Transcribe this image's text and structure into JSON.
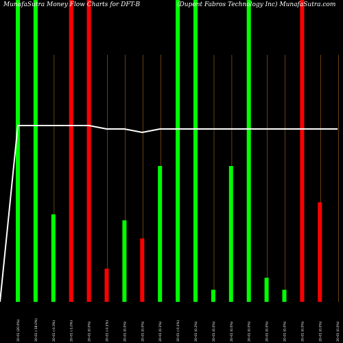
{
  "chart_data": {
    "type": "bar",
    "title_left": "MunafaSutra  Money Flow  Charts for DFT-B",
    "title_right": "(Dupont Fabros Technology Inc) MunafaSutra.com",
    "categories": [
      "20-01 (20.0%)",
      "20-01 (-18.0%)",
      "20-01 (-0.3%)",
      "20-01 (-1.0%)",
      "20-01 (0.0%)",
      "20-01 (-0.1%)",
      "20-01 (0.0%)",
      "20-01 (0.0%)",
      "20-01 (0.1%)",
      "20-01 (-0.1%)",
      "20-01 (0.2%)",
      "20-01 (0.0%)",
      "20-01 (0.0%)",
      "20-01 (0.0%)",
      "20-01 (0.0%)",
      "20-01 (0.0%)",
      "20-01 (0.0%)",
      "20-01 (0.0%)",
      "20-01 (0.0%)"
    ],
    "series": [
      {
        "values": [
          100,
          100,
          29,
          100,
          100,
          11,
          27,
          21,
          45,
          100,
          100,
          4,
          45,
          100,
          8,
          4,
          100,
          33,
          0
        ]
      }
    ],
    "bar_colors": [
      "green",
      "green",
      "green",
      "red",
      "red",
      "red",
      "green",
      "red",
      "green",
      "green",
      "green",
      "green",
      "green",
      "green",
      "green",
      "green",
      "red",
      "red",
      "green"
    ],
    "price_line": [
      100,
      100,
      100,
      100,
      100,
      99,
      99,
      98,
      99,
      99,
      99,
      99,
      99,
      99,
      99,
      99,
      99,
      99,
      99
    ],
    "price_start": 0,
    "ylim": [
      0,
      100
    ],
    "colors": {
      "background": "#000000",
      "green": "#00ff00",
      "red": "#ff0000",
      "price_line": "#ffffff",
      "guide_line": "#b06a1a",
      "text": "#ffffff"
    }
  }
}
